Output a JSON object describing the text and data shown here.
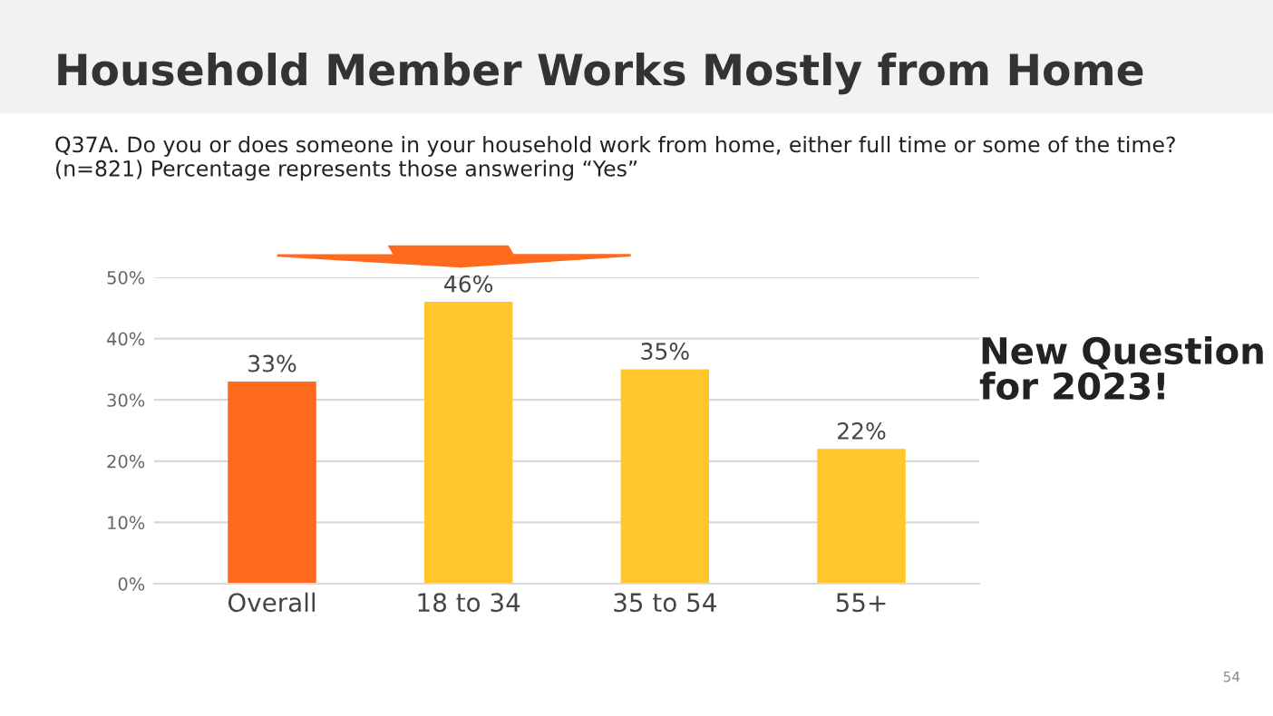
{
  "chart_data": {
    "type": "bar",
    "title": "Household Member Works Mostly from Home",
    "subtitle": "Q37A. Do you or does someone in your household work from home, either full time or some of the time? (n=821) Percentage represents those answering “Yes”",
    "categories": [
      "Overall",
      "18 to 34",
      "35 to 54",
      "55+"
    ],
    "values": [
      33,
      46,
      35,
      22
    ],
    "colors": [
      "#ff6a1f",
      "#ffc72c",
      "#ffc72c",
      "#ffc72c"
    ],
    "ylim": [
      0,
      50
    ],
    "yticks": [
      {
        "value": 0,
        "label": "0%"
      },
      {
        "value": 10,
        "label": "10%"
      },
      {
        "value": 20,
        "label": "20%"
      },
      {
        "value": 30,
        "label": "30%"
      },
      {
        "value": 40,
        "label": "40%"
      },
      {
        "value": 50,
        "label": "50%"
      }
    ],
    "value_labels": [
      "33%",
      "46%",
      "35%",
      "22%"
    ],
    "grid": "y",
    "annotations": [
      "New Question\nfor 2023!",
      "54"
    ]
  }
}
